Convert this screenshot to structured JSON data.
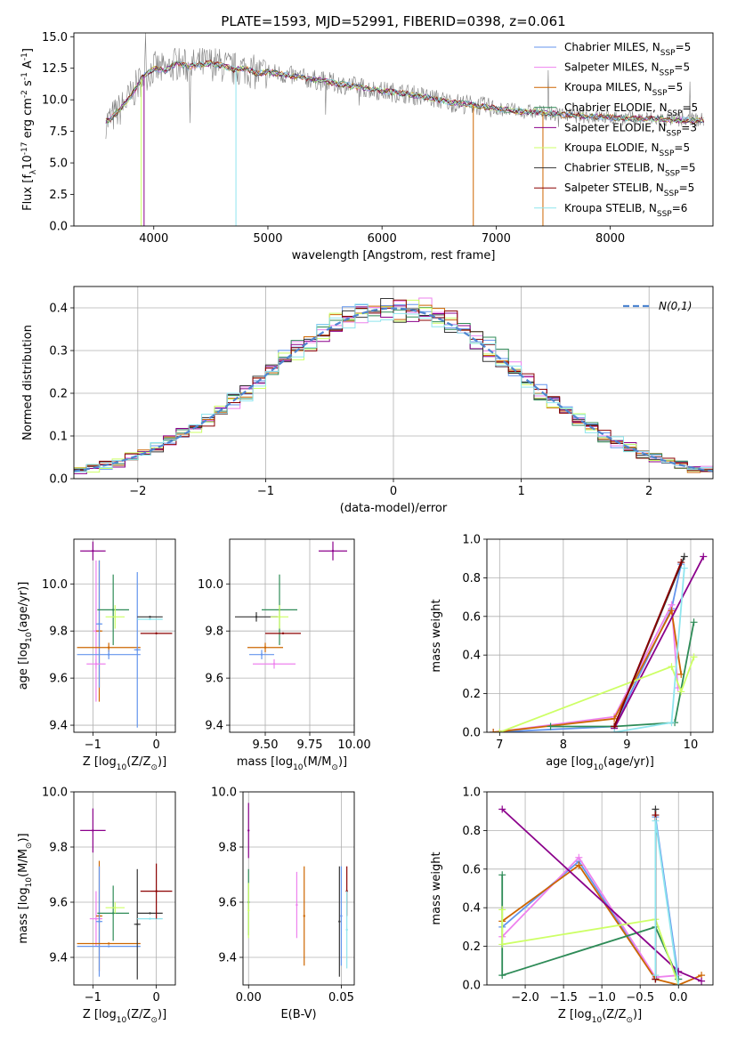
{
  "chart_data": [
    {
      "type": "line",
      "title": "PLATE=1593, MJD=52991, FIBERID=0398, z=0.061",
      "xlabel": "wavelength [Angstrom, rest frame]",
      "ylabel": "Flux [f$_\\lambda$10$^{-17}$ erg cm$^{-2}$ s$^{-1}$ A$^{-1}$]",
      "xlim": [
        3300,
        8900
      ],
      "ylim": [
        0,
        15.3
      ],
      "xticks": [
        4000,
        5000,
        6000,
        7000,
        8000
      ],
      "yticks": [
        0.0,
        2.5,
        5.0,
        7.5,
        10.0,
        12.5,
        15.0
      ],
      "legend_position": "upper-right",
      "grid": false,
      "data_series": {
        "name": "",
        "color": "#808080",
        "x": [
          3600,
          3700,
          3800,
          3900,
          4000,
          4100,
          4200,
          4300,
          4400,
          4500,
          4600,
          4700,
          4800,
          4900,
          5000,
          5200,
          5400,
          5600,
          5800,
          6000,
          6200,
          6400,
          6600,
          6800,
          7000,
          7200,
          7400,
          7600,
          7800,
          8000,
          8200,
          8400,
          8600,
          8800
        ],
        "y": [
          8.3,
          9.2,
          10.3,
          11.8,
          12.5,
          12.3,
          12.9,
          12.6,
          12.8,
          12.9,
          12.7,
          12.4,
          12.5,
          12.1,
          12.2,
          11.9,
          11.6,
          11.3,
          11.0,
          10.7,
          10.5,
          10.2,
          9.8,
          9.6,
          9.3,
          9.1,
          9.0,
          8.8,
          8.7,
          8.6,
          8.5,
          8.5,
          8.4,
          8.4
        ]
      },
      "series": [
        {
          "name": "Chabrier MILES, N$_{SSP}$=5",
          "color": "#6495ed"
        },
        {
          "name": "Salpeter MILES, N$_{SSP}$=5",
          "color": "#ee82ee"
        },
        {
          "name": "Kroupa MILES, N$_{SSP}$=5",
          "color": "#cd6600"
        },
        {
          "name": "Chabrier ELODIE, N$_{SSP}$=5",
          "color": "#2e8b57"
        },
        {
          "name": "Salpeter ELODIE, N$_{SSP}$=3",
          "color": "#8b008b"
        },
        {
          "name": "Kroupa ELODIE, N$_{SSP}$=5",
          "color": "#cdff66"
        },
        {
          "name": "Chabrier STELIB, N$_{SSP}$=5",
          "color": "#363636"
        },
        {
          "name": "Salpeter STELIB, N$_{SSP}$=5",
          "color": "#8b0000"
        },
        {
          "name": "Kroupa STELIB, N$_{SSP}$=6",
          "color": "#8ee5ee"
        }
      ]
    },
    {
      "type": "line",
      "title": "",
      "xlabel": "(data-model)/error",
      "ylabel": "Normed distribution",
      "xlim": [
        -2.5,
        2.5
      ],
      "ylim": [
        0,
        0.45
      ],
      "xticks": [
        -2,
        -1,
        0,
        1,
        2
      ],
      "yticks": [
        0.0,
        0.1,
        0.2,
        0.3,
        0.4
      ],
      "grid": true,
      "legend_position": "upper-right",
      "legend": "$\\mathcal{N}(0,1)$",
      "gaussian_color": "#4f86d0",
      "hist_bin_width": 0.1,
      "hist_colors": [
        "#6495ed",
        "#ee82ee",
        "#cd6600",
        "#2e8b57",
        "#8b008b",
        "#cdff66",
        "#363636",
        "#8b0000",
        "#8ee5ee"
      ]
    },
    {
      "type": "scatter",
      "xlabel": "Z [log$_{10}$($Z/Z_\\odot$)]",
      "ylabel": "age  [log$_{10}$($age/yr$)]",
      "xlim": [
        -1.3,
        0.3
      ],
      "ylim": [
        9.37,
        10.19
      ],
      "xticks": [
        -1,
        0
      ],
      "yticks": [
        9.4,
        9.6,
        9.8,
        10.0
      ],
      "grid": true,
      "points": [
        {
          "x": -1.0,
          "y": 10.14,
          "xerr": 0.2,
          "yerr": 0.04,
          "color": "#8b008b"
        },
        {
          "x": -0.95,
          "y": 9.8,
          "xerr": 0.05,
          "yerr": 0.3,
          "color": "#ee82ee"
        },
        {
          "x": -0.9,
          "y": 9.8,
          "xerr": 0.05,
          "yerr": 0.3,
          "color": "#cd6600"
        },
        {
          "x": -0.9,
          "y": 9.83,
          "xerr": 0.05,
          "yerr": 0.27,
          "color": "#6495ed"
        },
        {
          "x": -0.75,
          "y": 9.73,
          "xerr": 0.5,
          "yerr": 0.02,
          "color": "#cd6600"
        },
        {
          "x": -0.75,
          "y": 9.7,
          "xerr": 0.5,
          "yerr": 0.02,
          "color": "#6495ed"
        },
        {
          "x": -0.95,
          "y": 9.66,
          "xerr": 0.15,
          "yerr": 0.02,
          "color": "#ee82ee"
        },
        {
          "x": -0.68,
          "y": 9.89,
          "xerr": 0.25,
          "yerr": 0.15,
          "color": "#2e8b57"
        },
        {
          "x": -0.65,
          "y": 9.86,
          "xerr": 0.15,
          "yerr": 0.05,
          "color": "#cdff66"
        },
        {
          "x": -0.3,
          "y": 9.72,
          "xerr": 0.05,
          "yerr": 0.33,
          "color": "#6495ed"
        },
        {
          "x": -0.1,
          "y": 9.86,
          "xerr": 0.2,
          "yerr": 0.0,
          "color": "#363636"
        },
        {
          "x": -0.1,
          "y": 9.85,
          "xerr": 0.2,
          "yerr": 0.0,
          "color": "#8ee5ee"
        },
        {
          "x": 0.0,
          "y": 9.79,
          "xerr": 0.25,
          "yerr": 0.0,
          "color": "#8b0000"
        }
      ]
    },
    {
      "type": "scatter",
      "xlabel": "mass [log$_{10}$($M/M_\\odot$)]",
      "ylabel": "",
      "xlim": [
        9.3,
        10.0
      ],
      "ylim": [
        9.37,
        10.19
      ],
      "xticks": [
        9.5,
        9.75,
        10.0
      ],
      "xtick_labels": [
        "9.50",
        "9.75",
        "10.00"
      ],
      "yticks": [
        9.4,
        9.6,
        9.8,
        10.0
      ],
      "grid": true,
      "points": [
        {
          "x": 9.45,
          "y": 9.86,
          "xerr": 0.12,
          "yerr": 0.02,
          "color": "#363636"
        },
        {
          "x": 9.5,
          "y": 9.73,
          "xerr": 0.1,
          "yerr": 0.02,
          "color": "#cd6600"
        },
        {
          "x": 9.48,
          "y": 9.7,
          "xerr": 0.07,
          "yerr": 0.02,
          "color": "#6495ed"
        },
        {
          "x": 9.55,
          "y": 9.66,
          "xerr": 0.12,
          "yerr": 0.02,
          "color": "#ee82ee"
        },
        {
          "x": 9.58,
          "y": 9.89,
          "xerr": 0.1,
          "yerr": 0.15,
          "color": "#2e8b57"
        },
        {
          "x": 9.58,
          "y": 9.86,
          "xerr": 0.05,
          "yerr": 0.05,
          "color": "#cdff66"
        },
        {
          "x": 9.6,
          "y": 9.79,
          "xerr": 0.1,
          "yerr": 0.0,
          "color": "#8b0000"
        },
        {
          "x": 9.88,
          "y": 10.14,
          "xerr": 0.08,
          "yerr": 0.04,
          "color": "#8b008b"
        }
      ]
    },
    {
      "type": "line",
      "xlabel": "age  [log$_{10}$($age/yr$)]",
      "ylabel": "mass weight",
      "xlim": [
        6.8,
        10.35
      ],
      "ylim": [
        0,
        1.0
      ],
      "xticks": [
        7,
        8,
        9,
        10
      ],
      "yticks": [
        0.0,
        0.2,
        0.4,
        0.6,
        0.8,
        1.0
      ],
      "grid": true,
      "series": [
        {
          "color": "#6495ed",
          "x": [
            6.9,
            8.8,
            9.7,
            9.85
          ],
          "y": [
            0.0,
            0.03,
            0.64,
            0.87
          ]
        },
        {
          "color": "#ee82ee",
          "x": [
            6.9,
            8.8,
            9.7,
            9.8
          ],
          "y": [
            0.0,
            0.08,
            0.66,
            0.23
          ]
        },
        {
          "color": "#cd6600",
          "x": [
            6.9,
            8.8,
            9.7,
            9.85
          ],
          "y": [
            0.0,
            0.07,
            0.63,
            0.3
          ]
        },
        {
          "color": "#2e8b57",
          "x": [
            7.8,
            8.8,
            9.75,
            10.05
          ],
          "y": [
            0.03,
            0.03,
            0.05,
            0.57
          ]
        },
        {
          "color": "#8b008b",
          "x": [
            8.8,
            10.2
          ],
          "y": [
            0.02,
            0.91
          ]
        },
        {
          "color": "#cdff66",
          "x": [
            7.0,
            9.7,
            9.85,
            10.05
          ],
          "y": [
            0.0,
            0.34,
            0.21,
            0.39
          ]
        },
        {
          "color": "#363636",
          "x": [
            8.8,
            9.9
          ],
          "y": [
            0.03,
            0.91
          ]
        },
        {
          "color": "#8b0000",
          "x": [
            8.8,
            9.85
          ],
          "y": [
            0.03,
            0.88
          ]
        },
        {
          "color": "#8ee5ee",
          "x": [
            8.8,
            9.7,
            9.9
          ],
          "y": [
            0.0,
            0.05,
            0.85
          ]
        }
      ]
    },
    {
      "type": "scatter",
      "xlabel": "Z [log$_{10}$($Z/Z_\\odot$)]",
      "ylabel": "mass [log$_{10}$($M/M_\\odot$)]",
      "xlim": [
        -1.3,
        0.3
      ],
      "ylim": [
        9.3,
        10.0
      ],
      "xticks": [
        -1,
        0
      ],
      "yticks": [
        9.4,
        9.6,
        9.8,
        10.0
      ],
      "grid": true,
      "points": [
        {
          "x": -1.0,
          "y": 9.86,
          "xerr": 0.2,
          "yerr": 0.08,
          "color": "#8b008b"
        },
        {
          "x": -0.95,
          "y": 9.54,
          "xerr": 0.1,
          "yerr": 0.1,
          "color": "#ee82ee"
        },
        {
          "x": -0.9,
          "y": 9.55,
          "xerr": 0.05,
          "yerr": 0.2,
          "color": "#cd6600"
        },
        {
          "x": -0.9,
          "y": 9.53,
          "xerr": 0.05,
          "yerr": 0.2,
          "color": "#6495ed"
        },
        {
          "x": -0.75,
          "y": 9.45,
          "xerr": 0.5,
          "yerr": 0.0,
          "color": "#cd6600"
        },
        {
          "x": -0.75,
          "y": 9.44,
          "xerr": 0.5,
          "yerr": 0.0,
          "color": "#6495ed"
        },
        {
          "x": -0.68,
          "y": 9.56,
          "xerr": 0.25,
          "yerr": 0.1,
          "color": "#2e8b57"
        },
        {
          "x": -0.65,
          "y": 9.58,
          "xerr": 0.15,
          "yerr": 0.02,
          "color": "#cdff66"
        },
        {
          "x": -0.3,
          "y": 9.52,
          "xerr": 0.05,
          "yerr": 0.2,
          "color": "#363636"
        },
        {
          "x": -0.1,
          "y": 9.56,
          "xerr": 0.2,
          "yerr": 0.0,
          "color": "#363636"
        },
        {
          "x": -0.1,
          "y": 9.54,
          "xerr": 0.2,
          "yerr": 0.0,
          "color": "#8ee5ee"
        },
        {
          "x": 0.0,
          "y": 9.64,
          "xerr": 0.25,
          "yerr": 0.1,
          "color": "#8b0000"
        }
      ]
    },
    {
      "type": "scatter",
      "xlabel": "E(B-V)",
      "ylabel": "",
      "xlim": [
        -0.003,
        0.057
      ],
      "ylim": [
        9.3,
        10.0
      ],
      "xticks": [
        0.0,
        0.05
      ],
      "xtick_labels": [
        "0.00",
        "0.05"
      ],
      "yticks": [
        9.4,
        9.6,
        9.8,
        10.0
      ],
      "grid": true,
      "points": [
        {
          "x": 0.0,
          "y": 9.86,
          "yerr": 0.1,
          "color": "#8b008b"
        },
        {
          "x": 0.0,
          "y": 9.6,
          "yerr": 0.12,
          "color": "#2e8b57"
        },
        {
          "x": 0.0,
          "y": 9.57,
          "yerr": 0.1,
          "color": "#cdff66"
        },
        {
          "x": 0.026,
          "y": 9.59,
          "yerr": 0.12,
          "color": "#ee82ee"
        },
        {
          "x": 0.03,
          "y": 9.55,
          "yerr": 0.18,
          "color": "#cd6600"
        },
        {
          "x": 0.049,
          "y": 9.53,
          "yerr": 0.2,
          "color": "#363636"
        },
        {
          "x": 0.05,
          "y": 9.55,
          "yerr": 0.18,
          "color": "#6495ed"
        },
        {
          "x": 0.053,
          "y": 9.64,
          "yerr": 0.09,
          "color": "#8b0000"
        },
        {
          "x": 0.053,
          "y": 9.5,
          "yerr": 0.14,
          "color": "#8ee5ee"
        }
      ]
    },
    {
      "type": "line",
      "xlabel": "Z [log$_{10}$($Z/Z_\\odot$)]",
      "ylabel": "mass weight",
      "xlim": [
        -2.5,
        0.45
      ],
      "ylim": [
        0,
        1.0
      ],
      "xticks": [
        -2.0,
        -1.5,
        -1.0,
        -0.5,
        0.0
      ],
      "xtick_labels": [
        "−2.0",
        "−1.5",
        "−1.0",
        "−0.5",
        "0.0"
      ],
      "yticks": [
        0.0,
        0.2,
        0.4,
        0.6,
        0.8,
        1.0
      ],
      "grid": true,
      "series": [
        {
          "color": "#6495ed",
          "x": [
            -2.3,
            -1.3,
            -0.3,
            -0.3,
            0.0
          ],
          "y": [
            0.3,
            0.64,
            0.03,
            0.87,
            0.03
          ]
        },
        {
          "color": "#ee82ee",
          "x": [
            -2.3,
            -1.3,
            -0.3,
            0.0
          ],
          "y": [
            0.25,
            0.66,
            0.04,
            0.05
          ]
        },
        {
          "color": "#cd6600",
          "x": [
            -2.3,
            -1.3,
            -0.3,
            0.0,
            0.3
          ],
          "y": [
            0.33,
            0.62,
            0.03,
            0.0,
            0.05
          ]
        },
        {
          "color": "#2e8b57",
          "x": [
            -2.3,
            -2.3,
            -0.3,
            0.0
          ],
          "y": [
            0.57,
            0.05,
            0.3,
            0.03
          ]
        },
        {
          "color": "#8b008b",
          "x": [
            -2.3,
            0.0,
            0.3
          ],
          "y": [
            0.91,
            0.07,
            0.02
          ]
        },
        {
          "color": "#cdff66",
          "x": [
            -2.3,
            -2.3,
            -0.3,
            0.0
          ],
          "y": [
            0.39,
            0.21,
            0.34,
            0.0
          ]
        },
        {
          "color": "#363636",
          "x": [
            -0.3,
            -0.3
          ],
          "y": [
            0.03,
            0.91
          ]
        },
        {
          "color": "#8b0000",
          "x": [
            -0.3,
            -0.3
          ],
          "y": [
            0.03,
            0.88
          ]
        },
        {
          "color": "#8ee5ee",
          "x": [
            -0.3,
            -0.3,
            0.0
          ],
          "y": [
            0.05,
            0.85,
            0.0
          ]
        }
      ]
    }
  ]
}
